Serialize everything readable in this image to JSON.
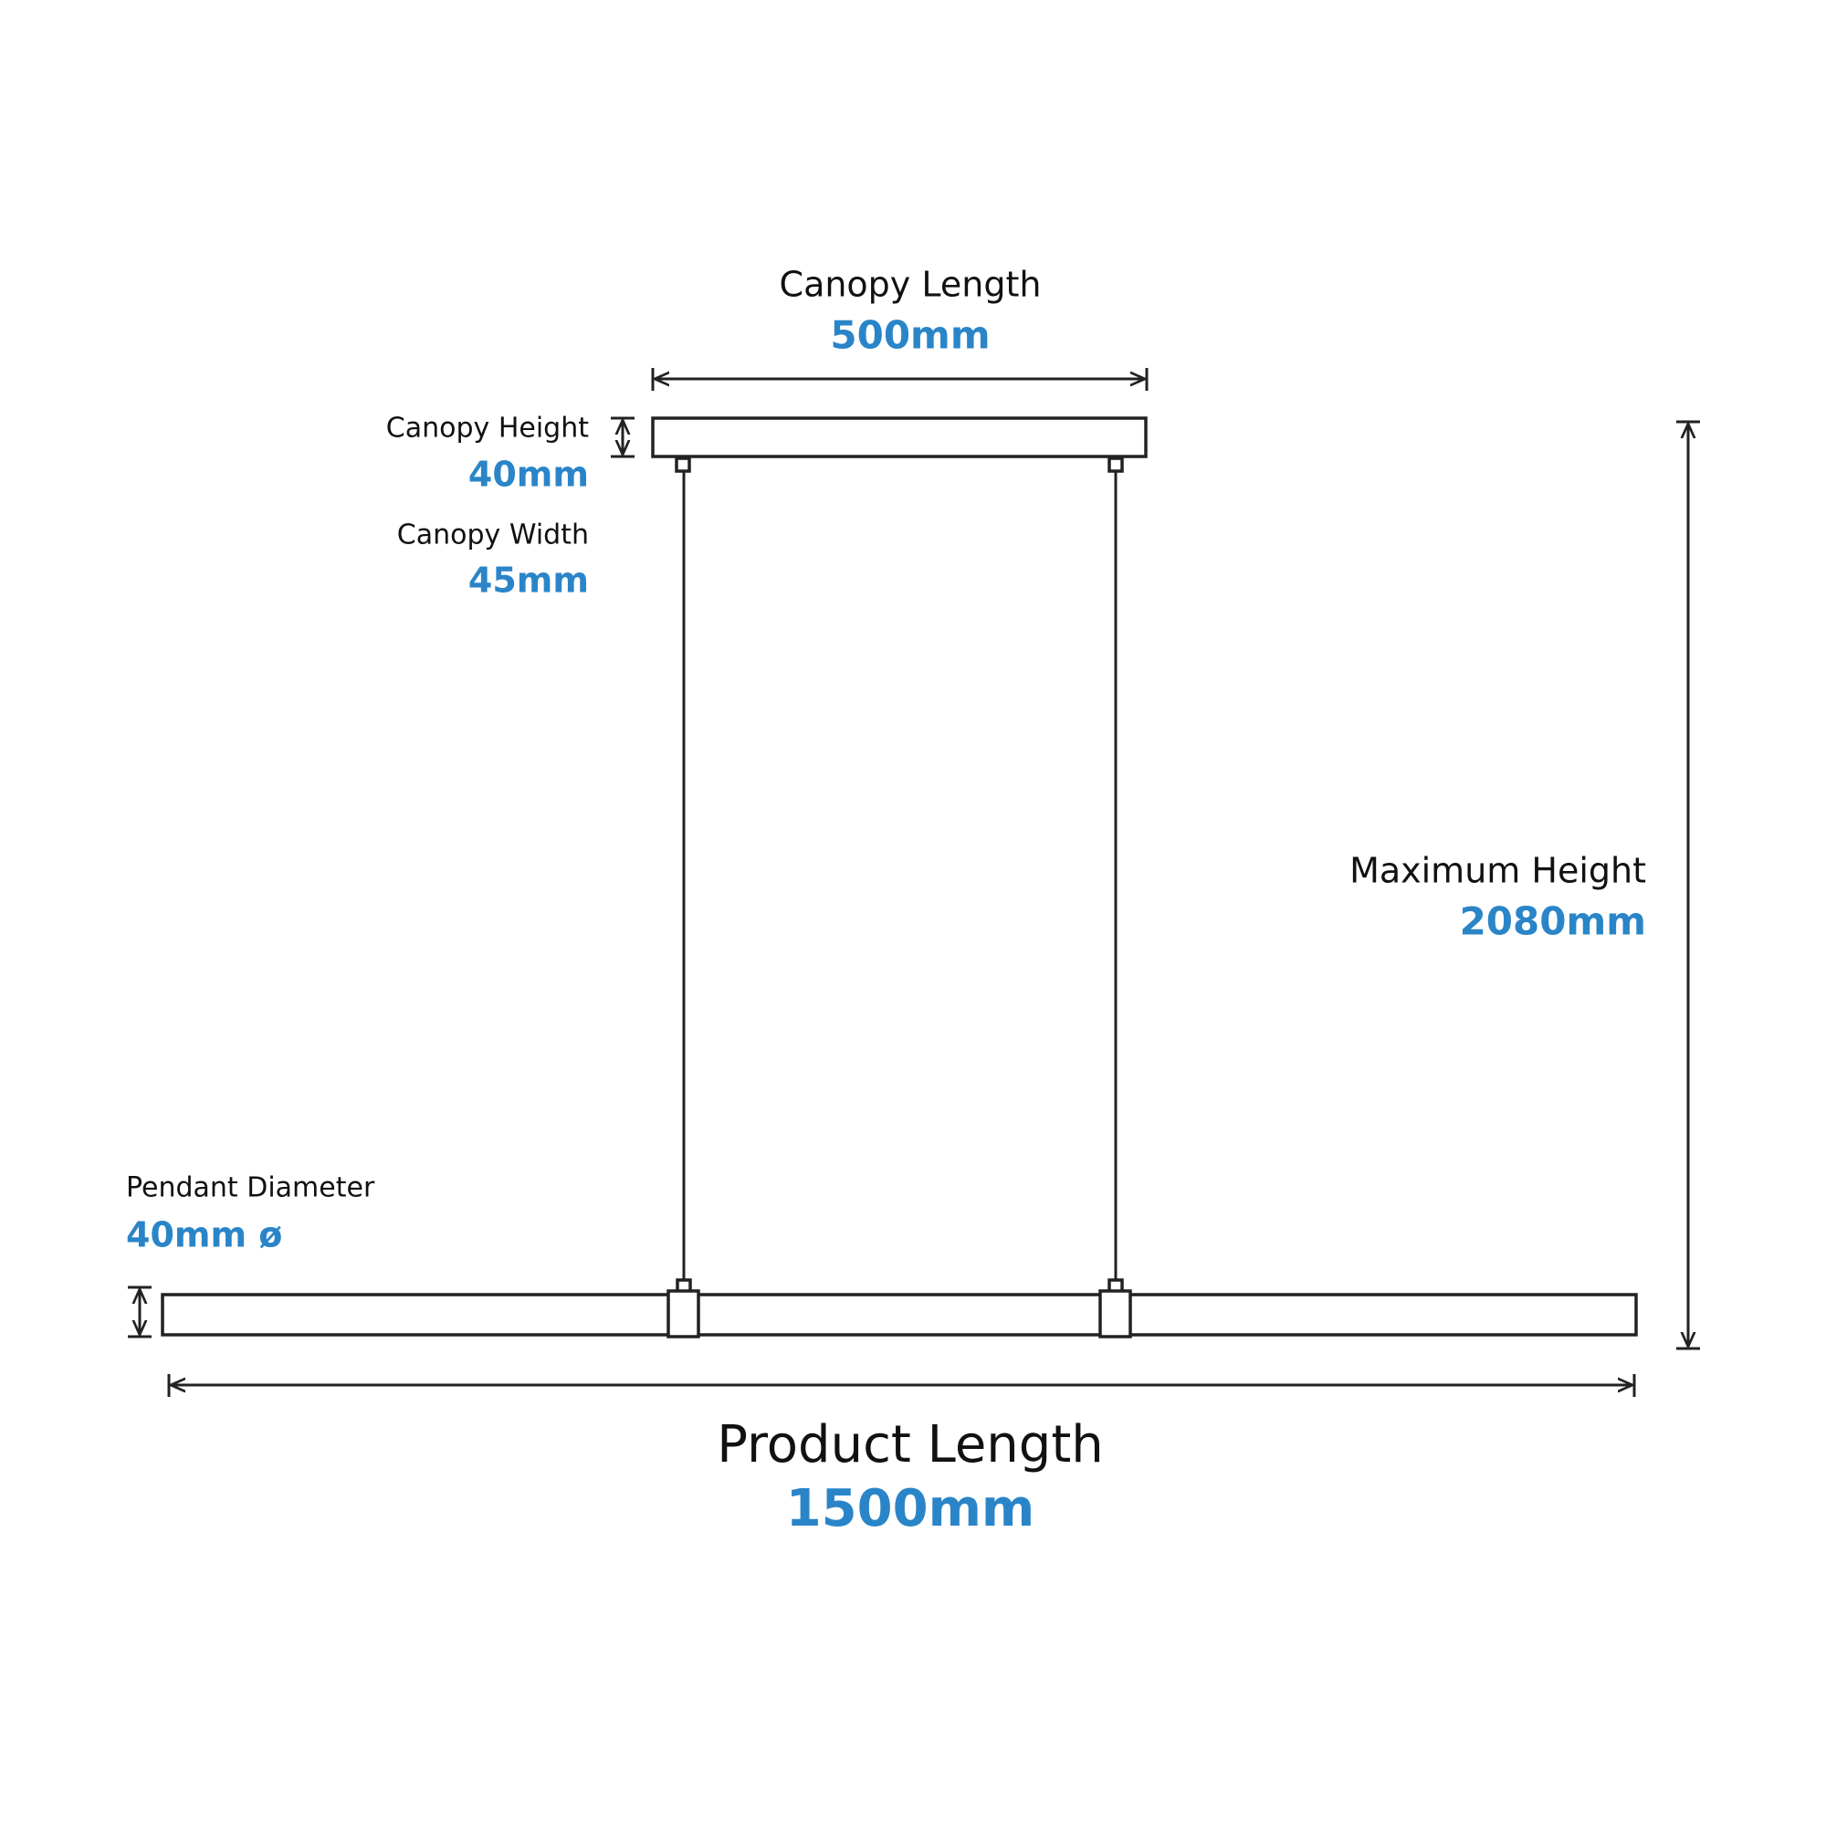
{
  "canopy_length": {
    "label": "Canopy Length",
    "value": "500mm"
  },
  "canopy_height": {
    "label": "Canopy Height",
    "value": "40mm"
  },
  "canopy_width": {
    "label": "Canopy Width",
    "value": "45mm"
  },
  "maximum_height": {
    "label": "Maximum Height",
    "value": "2080mm"
  },
  "pendant_diameter": {
    "label": "Pendant Diameter",
    "value": "40mm ø"
  },
  "product_length": {
    "label": "Product Length",
    "value": "1500mm"
  }
}
